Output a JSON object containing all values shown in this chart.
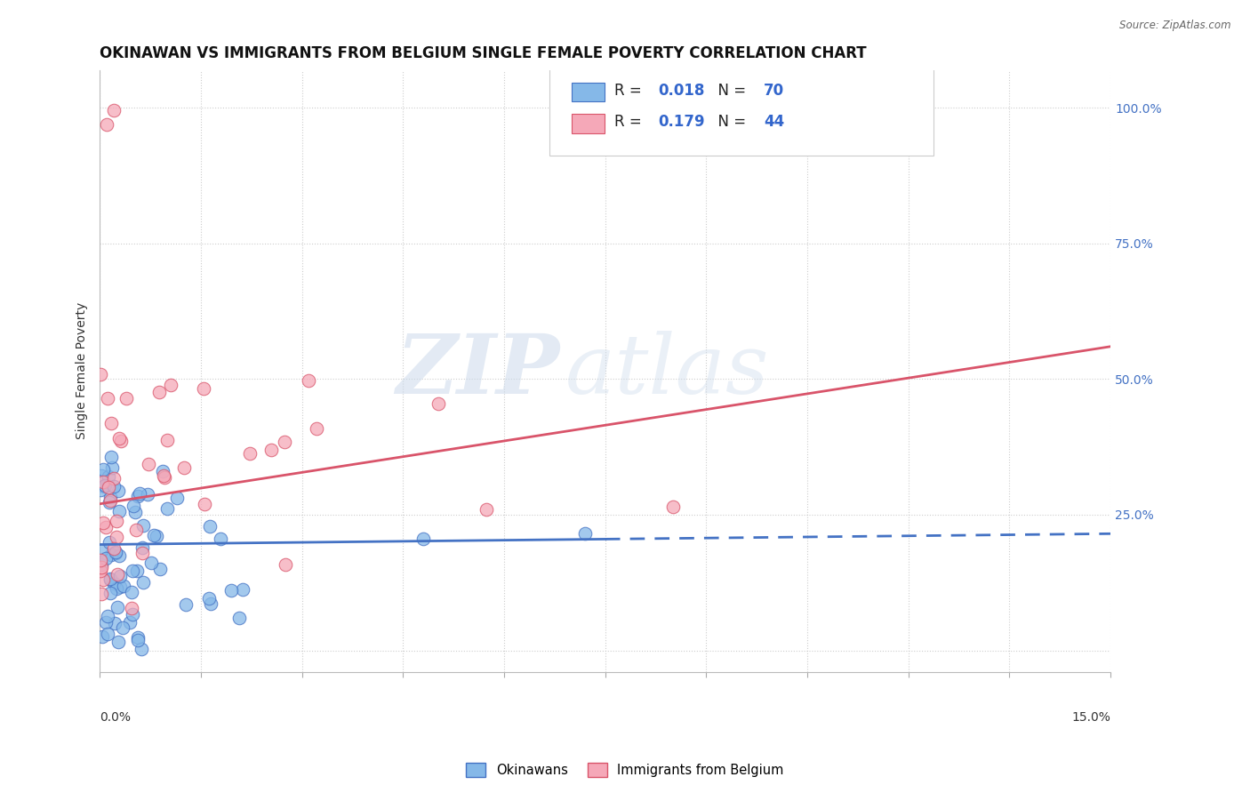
{
  "title": "OKINAWAN VS IMMIGRANTS FROM BELGIUM SINGLE FEMALE POVERTY CORRELATION CHART",
  "source": "Source: ZipAtlas.com",
  "ylabel": "Single Female Poverty",
  "x_min": 0.0,
  "x_max": 0.15,
  "y_min": -0.04,
  "y_max": 1.07,
  "r_okinawan": 0.018,
  "n_okinawan": 70,
  "r_belgium": 0.179,
  "n_belgium": 44,
  "color_okinawan": "#85b8e8",
  "color_belgium": "#f5a8b8",
  "color_trendline_okinawan": "#4472c4",
  "color_trendline_belgium": "#d9546a",
  "legend_label_okinawan": "Okinawans",
  "legend_label_belgium": "Immigrants from Belgium",
  "watermark_zip": "ZIP",
  "watermark_atlas": "atlas",
  "title_fontsize": 12,
  "label_fontsize": 10,
  "tick_fontsize": 9,
  "trend_ok_y0": 0.195,
  "trend_ok_y1": 0.215,
  "trend_bel_y0": 0.27,
  "trend_bel_y1": 0.56,
  "trend_ok_solid_end": 0.075
}
